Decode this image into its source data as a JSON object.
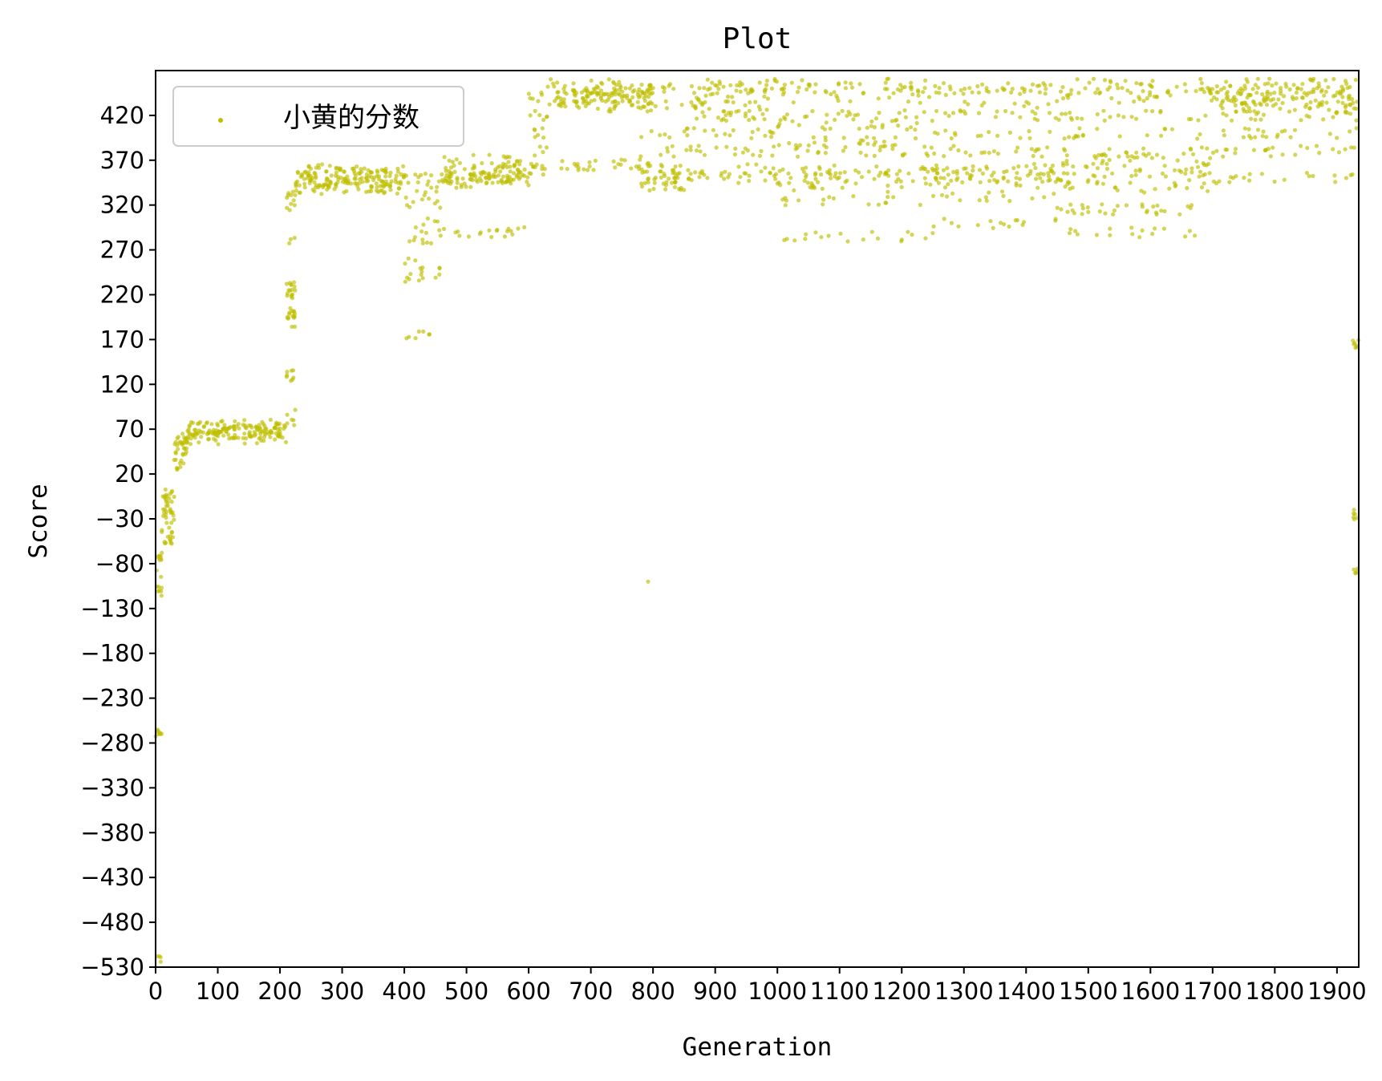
{
  "chart_data": {
    "type": "scatter",
    "title": "Plot",
    "xlabel": "Generation",
    "ylabel": "Score",
    "xlim": [
      0,
      1935
    ],
    "ylim": [
      -530,
      470
    ],
    "x_ticks": [
      0,
      100,
      200,
      300,
      400,
      500,
      600,
      700,
      800,
      900,
      1000,
      1100,
      1200,
      1300,
      1400,
      1500,
      1600,
      1700,
      1800,
      1900
    ],
    "y_ticks": [
      -530,
      -480,
      -430,
      -380,
      -330,
      -280,
      -230,
      -180,
      -130,
      -80,
      -30,
      20,
      70,
      120,
      170,
      220,
      270,
      320,
      370,
      420
    ],
    "x_tick_labels": [
      "0",
      "100",
      "200",
      "300",
      "400",
      "500",
      "600",
      "700",
      "800",
      "900",
      "1000",
      "1100",
      "1200",
      "1300",
      "1400",
      "1500",
      "1600",
      "1700",
      "1800",
      "1900"
    ],
    "y_tick_labels": [
      "−530",
      "−480",
      "−430",
      "−380",
      "−330",
      "−280",
      "−230",
      "−180",
      "−130",
      "−80",
      "−30",
      "20",
      "70",
      "120",
      "170",
      "220",
      "270",
      "320",
      "370",
      "420"
    ],
    "grid": false,
    "legend_position": "top-left",
    "series": [
      {
        "name": "小黄的分数",
        "color": "#bfbf00",
        "segments": [
          {
            "x_range": [
              0,
              10
            ],
            "y_values": [
              -520,
              -270,
              -110,
              -70,
              -90
            ]
          },
          {
            "x_range": [
              10,
              30
            ],
            "y_values": [
              -30,
              -20,
              -45,
              -10,
              -25,
              -55,
              -5,
              0
            ]
          },
          {
            "x_range": [
              30,
              50
            ],
            "y_values": [
              30,
              50,
              60,
              55,
              45,
              58
            ]
          },
          {
            "x_range": [
              50,
              210
            ],
            "y_values": [
              60,
              65,
              70,
              72,
              68,
              75,
              62,
              70,
              66,
              73,
              58,
              71,
              69,
              64
            ]
          },
          {
            "x_range": [
              210,
              225
            ],
            "y_values": [
              80,
              90,
              130,
              190,
              200,
              220,
              230,
              280,
              320,
              330
            ]
          },
          {
            "x_range": [
              225,
              400
            ],
            "y_values": [
              345,
              350,
              355,
              340,
              360,
              348,
              352,
              338,
              358,
              346
            ]
          },
          {
            "x_range": [
              400,
              460
            ],
            "y_values": [
              340,
              320,
              300,
              255,
              240,
              245,
              290,
              280,
              175,
              330,
              350
            ]
          },
          {
            "x_range": [
              460,
              600
            ],
            "y_values": [
              350,
              355,
              345,
              360,
              365,
              348,
              358,
              370,
              352,
              290
            ]
          },
          {
            "x_range": [
              600,
              630
            ],
            "y_values": [
              380,
              400,
              420,
              440,
              360
            ]
          },
          {
            "x_range": [
              630,
              800
            ],
            "y_values": [
              440,
              445,
              450,
              435,
              448,
              442,
              455,
              430,
              365
            ]
          },
          {
            "x_range": [
              780,
              850
            ],
            "y_values": [
              355,
              340,
              360,
              350,
              345,
              380,
              400,
              430,
              450
            ]
          },
          {
            "x_range": [
              850,
              1000
            ],
            "y_values": [
              450,
              440,
              420,
              380,
              360,
              350,
              400,
              445,
              455,
              430
            ]
          },
          {
            "x_range": [
              1000,
              1250
            ],
            "y_values": [
              450,
              420,
              390,
              360,
              355,
              350,
              340,
              380,
              410,
              440,
              455,
              325,
              285
            ]
          },
          {
            "x_range": [
              1250,
              1450
            ],
            "y_values": [
              450,
              430,
              400,
              360,
              355,
              345,
              350,
              380,
              420,
              445,
              300,
              330
            ]
          },
          {
            "x_range": [
              1450,
              1700
            ],
            "y_values": [
              450,
              440,
              420,
              380,
              360,
              350,
              340,
              370,
              400,
              445,
              455,
              290,
              315
            ]
          },
          {
            "x_range": [
              1700,
              1935
            ],
            "y_values": [
              445,
              450,
              440,
              455,
              435,
              430,
              420,
              400,
              380,
              350
            ]
          },
          {
            "x_range": [
              1925,
              1935
            ],
            "y_values": [
              165,
              -25,
              -85
            ]
          }
        ],
        "outliers": [
          {
            "x": 792,
            "y": -100
          }
        ]
      }
    ]
  }
}
